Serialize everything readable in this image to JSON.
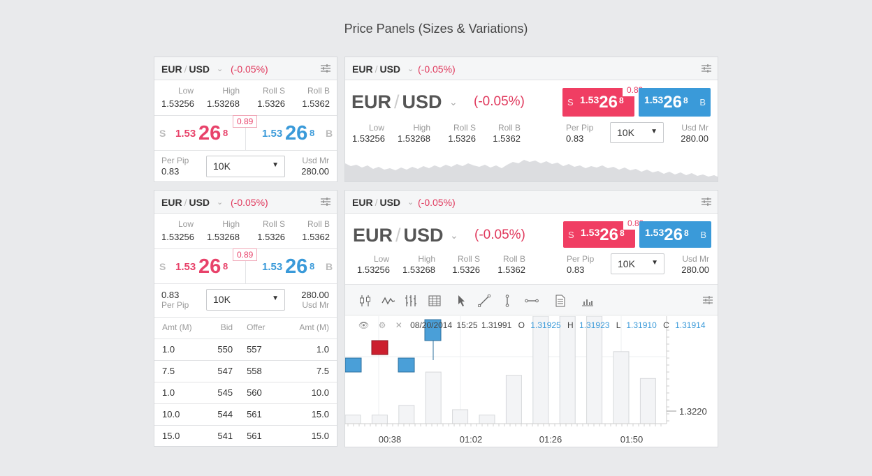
{
  "page_title": "Price Panels (Sizes & Variations)",
  "pair": {
    "base": "EUR",
    "quote": "USD",
    "change": "(-0.05%)"
  },
  "stats": {
    "low_label": "Low",
    "low": "1.53256",
    "high_label": "High",
    "high": "1.53268",
    "rolls_label": "Roll S",
    "rolls": "1.5326",
    "rollb_label": "Roll B",
    "rollb": "1.5362"
  },
  "quote": {
    "sell_letter": "S",
    "buy_letter": "B",
    "prefix": "1.53",
    "pips": "26",
    "frac": "8",
    "spread": "0.89"
  },
  "footer": {
    "perpip_label": "Per Pip",
    "perpip": "0.83",
    "amount": "10K",
    "usdmr_label": "Usd Mr",
    "usdmr": "280.00"
  },
  "depth": {
    "headers": [
      "Amt (M)",
      "Bid",
      "Offer",
      "Amt (M)"
    ],
    "rows": [
      [
        "1.0",
        "550",
        "557",
        "1.0"
      ],
      [
        "7.5",
        "547",
        "558",
        "7.5"
      ],
      [
        "1.0",
        "545",
        "560",
        "10.0"
      ],
      [
        "10.0",
        "544",
        "561",
        "15.0"
      ],
      [
        "15.0",
        "541",
        "561",
        "15.0"
      ]
    ]
  },
  "chart_data": {
    "type": "candlestick",
    "date": "08/20/2014",
    "time": "15:25",
    "price": "1.31991",
    "o_label": "O",
    "o": "1.31925",
    "h_label": "H",
    "h": "1.31923",
    "l_label": "L",
    "l": "1.31910",
    "c_label": "C",
    "c": "1.31914",
    "ytick": "1.3220",
    "xticks": [
      "00:38",
      "01:02",
      "01:26",
      "01:50"
    ],
    "candles": [
      {
        "dir": "up",
        "open": 1.3224,
        "close": 1.3228,
        "high": 1.3228,
        "low": 1.3224
      },
      {
        "dir": "down",
        "open": 1.3233,
        "close": 1.3229,
        "high": 1.3233,
        "low": 1.3229
      },
      {
        "dir": "up",
        "open": 1.3224,
        "close": 1.3228,
        "high": 1.3228,
        "low": 1.3224
      },
      {
        "dir": "up",
        "open": 1.3233,
        "close": 1.3239,
        "high": 1.3239,
        "low": 1.3229
      }
    ],
    "volumes": [
      0.08,
      0.08,
      0.17,
      0.48,
      0.13,
      0.08,
      0.45,
      1.0,
      1.0,
      1.0,
      0.67,
      0.42
    ]
  },
  "colors": {
    "sell": "#f03e63",
    "buy": "#3a9ad9",
    "change": "#e0385c"
  }
}
